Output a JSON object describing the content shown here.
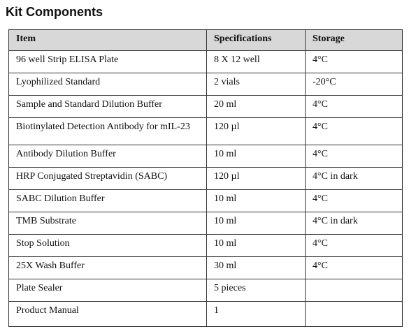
{
  "header": {
    "title": "Kit Components"
  },
  "table": {
    "columns": [
      "Item",
      "Specifications",
      "Storage"
    ],
    "rows": [
      [
        "96 well Strip ELISA Plate",
        "8 X 12 well",
        "4°C"
      ],
      [
        "Lyophilized Standard",
        "2 vials",
        "-20°C"
      ],
      [
        "Sample and Standard Dilution Buffer",
        "20 ml",
        "4°C"
      ],
      [
        "Biotinylated Detection Antibody for mIL-23",
        "120 µl",
        "4°C"
      ],
      [
        "Antibody Dilution Buffer",
        "10 ml",
        "4°C"
      ],
      [
        "HRP Conjugated Streptavidin (SABC)",
        "120 µl",
        "4°C in dark"
      ],
      [
        "SABC Dilution Buffer",
        "10 ml",
        "4°C"
      ],
      [
        "TMB Substrate",
        "10 ml",
        "4°C in dark"
      ],
      [
        "Stop Solution",
        "10 ml",
        "4°C"
      ],
      [
        "25X Wash Buffer",
        "30 ml",
        "4°C"
      ],
      [
        "Plate Sealer",
        "5 pieces"
      ],
      [
        "Product Manual",
        "1"
      ]
    ]
  }
}
